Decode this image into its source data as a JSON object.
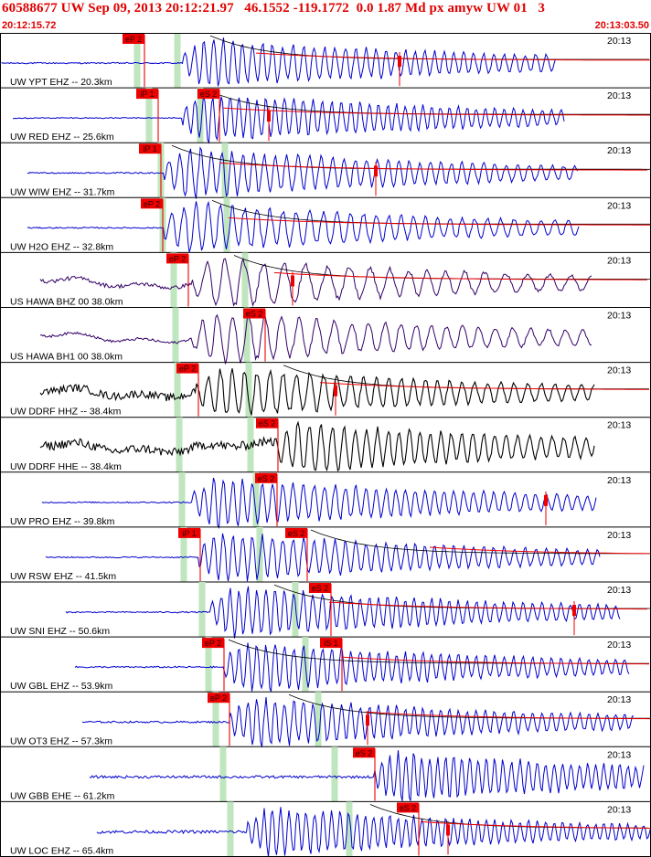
{
  "header": {
    "title": "60588677 UW Sep 09, 2013 20:12:21.97   46.1552 -119.1772  0.0 1.87 Md px amyw UW 01   3",
    "start_time": "20:12:15.72",
    "end_time": "20:13:03.50"
  },
  "colors": {
    "header_text": "#e00000",
    "pick_box": "#ee0000",
    "pick_line": "#ee0000",
    "green_bar": "#bfe6bf",
    "trace_blue": "#0000cc",
    "trace_purple": "#330066",
    "trace_black": "#000000",
    "coda_black": "#000000",
    "coda_red": "#ee0000",
    "grid": "#000000"
  },
  "chart_data": {
    "type": "seismogram",
    "time_range": [
      "20:12:15.72",
      "20:13:03.50"
    ],
    "minute_label": "20:13",
    "traces": [
      {
        "label": "UW YPT EHZ -- 20.3km",
        "color": "blue",
        "start": 1.5,
        "end": 608,
        "noise": 0.05,
        "picks": [
          {
            "label": "eP 2",
            "x": 158
          }
        ],
        "green": [
          150,
          194
        ],
        "coda": [
          230,
          280
        ],
        "redmark": 437,
        "arrival": 200,
        "amp": 1.0,
        "period": 11
      },
      {
        "label": "UW RED EHZ -- 25.6km",
        "color": "blue",
        "start": 14,
        "end": 618,
        "noise": 0.04,
        "picks": [
          {
            "label": "iP 1",
            "x": 173
          },
          {
            "label": "eS 2",
            "x": 240
          }
        ],
        "green": [
          163,
          219
        ],
        "coda": [
          228,
          244
        ],
        "redmark": 294,
        "arrival": 200,
        "amp": 1.0,
        "period": 10
      },
      {
        "label": "UW WIW EHZ -- 31.7km",
        "color": "blue",
        "start": 30,
        "end": 632,
        "noise": 0.05,
        "picks": [
          {
            "label": "iP 1",
            "x": 176
          }
        ],
        "green": [
          176,
          246
        ],
        "coda": [
          188,
          240
        ],
        "redmark": 411,
        "arrival": 180,
        "amp": 1.0,
        "period": 12
      },
      {
        "label": "UW H2O EHZ -- 32.8km",
        "color": "blue",
        "start": 30,
        "end": 634,
        "noise": 0.05,
        "picks": [
          {
            "label": "eP 2",
            "x": 178
          }
        ],
        "green": [
          178,
          248
        ],
        "coda": [
          232,
          250
        ],
        "redmark": null,
        "arrival": 180,
        "amp": 1.0,
        "period": 14
      },
      {
        "label": "US HAWA BHZ 00 38.0km",
        "color": "purple",
        "start": 44,
        "end": 648,
        "noise": 0.15,
        "picks": [
          {
            "label": "eP 2",
            "x": 206
          }
        ],
        "green": [
          190,
          268
        ],
        "coda": [
          256,
          300
        ],
        "redmark": 320,
        "arrival": 210,
        "amp": 1.0,
        "period": 22
      },
      {
        "label": "US HAWA BH1 00 38.0km",
        "color": "purple",
        "start": 44,
        "end": 648,
        "noise": 0.1,
        "picks": [
          {
            "label": "eS 2",
            "x": 290
          }
        ],
        "green": [
          192,
          270
        ],
        "coda": null,
        "redmark": null,
        "arrival": 210,
        "amp": 1.0,
        "period": 18
      },
      {
        "label": "UW DDRF HHZ -- 38.4km",
        "color": "black",
        "start": 44,
        "end": 650,
        "noise": 0.3,
        "picks": [
          {
            "label": "eP 2",
            "x": 217
          }
        ],
        "green": [
          194,
          272
        ],
        "coda": [
          310,
          350
        ],
        "redmark": 367,
        "arrival": 215,
        "amp": 1.0,
        "period": 14
      },
      {
        "label": "UW DDRF HHE -- 38.4km",
        "color": "black",
        "start": 44,
        "end": 650,
        "noise": 0.35,
        "picks": [
          {
            "label": "eS 2",
            "x": 304
          }
        ],
        "green": [
          196,
          274
        ],
        "coda": null,
        "redmark": null,
        "arrival": 300,
        "amp": 1.0,
        "period": 12
      },
      {
        "label": "UW PRO EHZ -- 39.8km",
        "color": "blue",
        "start": 46,
        "end": 652,
        "noise": 0.05,
        "picks": [
          {
            "label": "eS 2",
            "x": 303
          }
        ],
        "green": [
          199,
          280
        ],
        "coda": null,
        "redmark": 597,
        "arrival": 210,
        "amp": 1.0,
        "period": 11
      },
      {
        "label": "UW RSW EHZ -- 41.5km",
        "color": "blue",
        "start": 50,
        "end": 656,
        "noise": 0.05,
        "picks": [
          {
            "label": "iP 1",
            "x": 219
          },
          {
            "label": "eS 2",
            "x": 336
          }
        ],
        "green": [
          201,
          284
        ],
        "coda": [
          340,
          470
        ],
        "redmark": null,
        "arrival": 218,
        "amp": 1.0,
        "period": 11
      },
      {
        "label": "UW SNI EHZ -- 50.6km",
        "color": "blue",
        "start": 72,
        "end": 678,
        "noise": 0.05,
        "picks": [
          {
            "label": "eS 2",
            "x": 362
          }
        ],
        "green": [
          221,
          323
        ],
        "coda": [
          300,
          360
        ],
        "redmark": 628,
        "arrival": 230,
        "amp": 1.0,
        "period": 10
      },
      {
        "label": "UW GBL EHZ -- 53.9km",
        "color": "blue",
        "start": 82,
        "end": 688,
        "noise": 0.06,
        "picks": [
          {
            "label": "eP 2",
            "x": 245
          },
          {
            "label": "iS 1",
            "x": 374
          }
        ],
        "green": [
          228,
          334
        ],
        "coda": [
          250,
          374
        ],
        "redmark": null,
        "arrival": 245,
        "amp": 1.0,
        "period": 10
      },
      {
        "label": "UW OT3 EHZ -- 57.3km",
        "color": "blue",
        "start": 90,
        "end": 694,
        "noise": 0.07,
        "picks": [
          {
            "label": "eP 2",
            "x": 251
          }
        ],
        "green": [
          236,
          348
        ],
        "coda": [
          316,
          400
        ],
        "redmark": 402,
        "arrival": 251,
        "amp": 1.0,
        "period": 10
      },
      {
        "label": "UW GBB EHE -- 61.2km",
        "color": "blue",
        "start": 98,
        "end": 704,
        "noise": 0.1,
        "picks": [
          {
            "label": "eS 2",
            "x": 410
          }
        ],
        "green": [
          244,
          366
        ],
        "coda": null,
        "redmark": null,
        "arrival": 410,
        "amp": 1.0,
        "period": 9
      },
      {
        "label": "UW LOC EHZ -- 65.4km",
        "color": "blue",
        "start": 106,
        "end": 712,
        "noise": 0.12,
        "picks": [
          {
            "label": "eS 2",
            "x": 458
          }
        ],
        "green": [
          252,
          382
        ],
        "coda": [
          405,
          460
        ],
        "redmark": 490,
        "arrival": 270,
        "amp": 1.0,
        "period": 9
      }
    ]
  }
}
